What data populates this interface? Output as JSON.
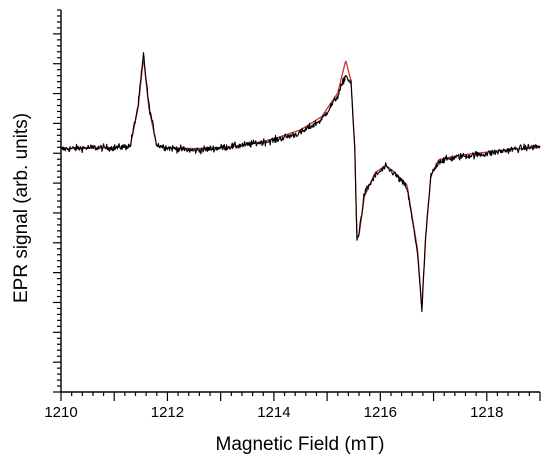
{
  "chart_data": {
    "type": "line",
    "xlabel": "Magnetic Field (mT)",
    "ylabel": "EPR signal (arb. units)",
    "xlim": [
      1210,
      1219
    ],
    "x_ticks": [
      "1210",
      "1212",
      "1214",
      "1216",
      "1218"
    ],
    "y_ticks_labeled": false,
    "ylim": [
      -8.2,
      4.7
    ],
    "grid": false,
    "series": [
      {
        "style": "noisy",
        "color": "#000000",
        "points": [
          [
            1210.0,
            0.0
          ],
          [
            1210.5,
            0.05
          ],
          [
            1211.0,
            0.05
          ],
          [
            1211.3,
            0.1
          ],
          [
            1211.45,
            1.5
          ],
          [
            1211.55,
            3.2
          ],
          [
            1211.65,
            1.5
          ],
          [
            1211.8,
            0.15
          ],
          [
            1212.0,
            0.05
          ],
          [
            1212.5,
            -0.05
          ],
          [
            1213.0,
            0.05
          ],
          [
            1213.5,
            0.15
          ],
          [
            1214.0,
            0.3
          ],
          [
            1214.5,
            0.55
          ],
          [
            1214.9,
            1.0
          ],
          [
            1215.2,
            1.8
          ],
          [
            1215.35,
            2.5
          ],
          [
            1215.45,
            2.2
          ],
          [
            1215.52,
            0.0
          ],
          [
            1215.56,
            -3.1
          ],
          [
            1215.6,
            -2.8
          ],
          [
            1215.7,
            -1.5
          ],
          [
            1215.9,
            -0.9
          ],
          [
            1216.1,
            -0.6
          ],
          [
            1216.25,
            -0.8
          ],
          [
            1216.5,
            -1.3
          ],
          [
            1216.7,
            -3.5
          ],
          [
            1216.78,
            -5.5
          ],
          [
            1216.85,
            -3.0
          ],
          [
            1216.95,
            -0.9
          ],
          [
            1217.1,
            -0.4
          ],
          [
            1217.5,
            -0.25
          ],
          [
            1218.0,
            -0.15
          ],
          [
            1218.5,
            0.0
          ],
          [
            1219.0,
            0.1
          ]
        ]
      },
      {
        "style": "smooth",
        "color": "#cc1a1a",
        "points": [
          [
            1210.0,
            0.02
          ],
          [
            1210.5,
            0.03
          ],
          [
            1211.0,
            0.05
          ],
          [
            1211.3,
            0.1
          ],
          [
            1211.45,
            1.4
          ],
          [
            1211.55,
            3.1
          ],
          [
            1211.65,
            1.4
          ],
          [
            1211.8,
            0.1
          ],
          [
            1212.0,
            0.05
          ],
          [
            1212.5,
            0.02
          ],
          [
            1213.0,
            0.05
          ],
          [
            1213.5,
            0.15
          ],
          [
            1214.0,
            0.35
          ],
          [
            1214.5,
            0.65
          ],
          [
            1214.9,
            1.1
          ],
          [
            1215.2,
            1.9
          ],
          [
            1215.35,
            3.0
          ],
          [
            1215.45,
            2.3
          ],
          [
            1215.52,
            0.0
          ],
          [
            1215.56,
            -3.0
          ],
          [
            1215.6,
            -2.9
          ],
          [
            1215.7,
            -1.6
          ],
          [
            1215.9,
            -0.8
          ],
          [
            1216.1,
            -0.55
          ],
          [
            1216.25,
            -0.75
          ],
          [
            1216.5,
            -1.2
          ],
          [
            1216.7,
            -3.4
          ],
          [
            1216.78,
            -5.4
          ],
          [
            1216.85,
            -3.0
          ],
          [
            1216.95,
            -0.9
          ],
          [
            1217.1,
            -0.35
          ],
          [
            1217.5,
            -0.2
          ],
          [
            1218.0,
            -0.1
          ],
          [
            1218.5,
            0.0
          ],
          [
            1219.0,
            0.05
          ]
        ]
      }
    ]
  }
}
